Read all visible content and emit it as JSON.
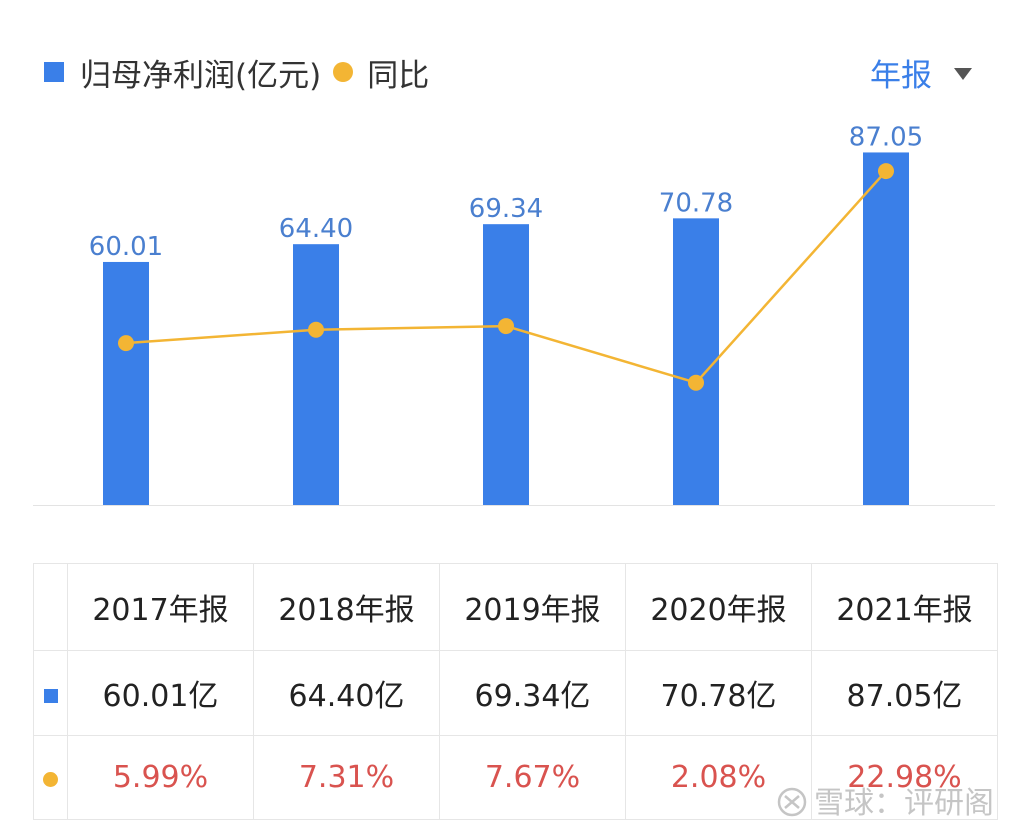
{
  "header": {
    "legend_bar_label": "归母净利润(亿元)",
    "legend_line_label": "同比",
    "period_label": "年报"
  },
  "colors": {
    "bar": "#3a7fe8",
    "line": "#f3b534",
    "pct_text": "#d9534f"
  },
  "chart_data": {
    "type": "bar",
    "categories": [
      "2017年报",
      "2018年报",
      "2019年报",
      "2020年报",
      "2021年报"
    ],
    "series": [
      {
        "name": "归母净利润(亿元)",
        "type": "bar",
        "values": [
          60.01,
          64.4,
          69.34,
          70.78,
          87.05
        ]
      },
      {
        "name": "同比",
        "type": "line",
        "values": [
          5.99,
          7.31,
          7.67,
          2.08,
          22.98
        ]
      }
    ],
    "data_labels": [
      "60.01",
      "64.40",
      "69.34",
      "70.78",
      "87.05"
    ],
    "ylim_bar": [
      0,
      100
    ],
    "ylim_line": [
      -10,
      30
    ],
    "grid": false
  },
  "table": {
    "headers": [
      "2017年报",
      "2018年报",
      "2019年报",
      "2020年报",
      "2021年报"
    ],
    "profit": [
      "60.01亿",
      "64.40亿",
      "69.34亿",
      "70.78亿",
      "87.05亿"
    ],
    "yoy": [
      "5.99%",
      "7.31%",
      "7.67%",
      "2.08%",
      "22.98%"
    ]
  },
  "watermark": "雪球：评研阁",
  "watermark_icon": "xueqiu-logo-icon"
}
